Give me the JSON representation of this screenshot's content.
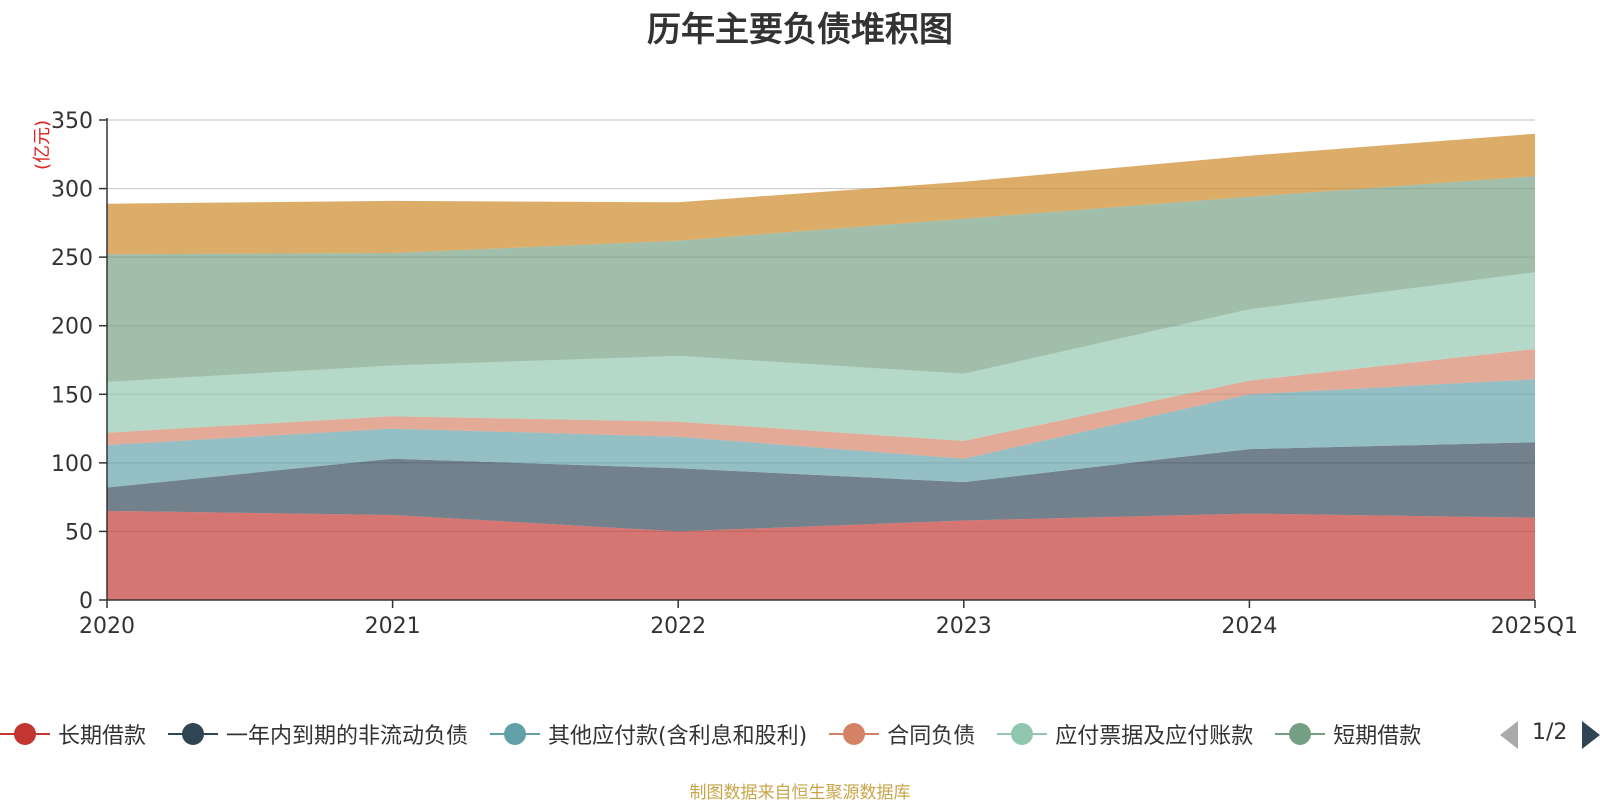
{
  "chart_data": {
    "type": "area",
    "stacked": true,
    "title": "历年主要负债堆积图",
    "ylabel": "(亿元)",
    "ylim": [
      0,
      350
    ],
    "yticks": [
      0,
      50,
      100,
      150,
      200,
      250,
      300,
      350
    ],
    "grid": true,
    "legend_position": "bottom",
    "categories": [
      "2020",
      "2021",
      "2022",
      "2023",
      "2024",
      "2025Q1"
    ],
    "series": [
      {
        "name": "长期借款",
        "color": "#c23531",
        "values": [
          65,
          62,
          50,
          58,
          63,
          60
        ]
      },
      {
        "name": "一年内到期的非流动负债",
        "color": "#2f4554",
        "values": [
          17,
          41,
          46,
          28,
          47,
          55
        ]
      },
      {
        "name": "其他应付款(含利息和股利)",
        "color": "#61a0a8",
        "values": [
          31,
          22,
          23,
          17,
          40,
          46
        ]
      },
      {
        "name": "合同负债",
        "color": "#d48265",
        "values": [
          9,
          9,
          11,
          13,
          10,
          22
        ]
      },
      {
        "name": "应付票据及应付账款",
        "color": "#91c7ae",
        "values": [
          37,
          37,
          48,
          49,
          52,
          56
        ]
      },
      {
        "name": "短期借款",
        "color": "#749f83",
        "values": [
          93,
          82,
          84,
          113,
          82,
          70
        ]
      },
      {
        "name": "",
        "color": "#ca8622",
        "values": [
          37,
          38,
          28,
          27,
          30,
          31
        ]
      }
    ]
  },
  "legend": {
    "items": [
      {
        "label": "长期借款",
        "color": "#c23531"
      },
      {
        "label": "一年内到期的非流动负债",
        "color": "#2f4554"
      },
      {
        "label": "其他应付款(含利息和股利)",
        "color": "#61a0a8"
      },
      {
        "label": "合同负债",
        "color": "#d48265"
      },
      {
        "label": "应付票据及应付账款",
        "color": "#91c7ae"
      },
      {
        "label": "短期借款",
        "color": "#749f83"
      }
    ],
    "page_indicator": "1/2"
  },
  "source_note": "制图数据来自恒生聚源数据库"
}
